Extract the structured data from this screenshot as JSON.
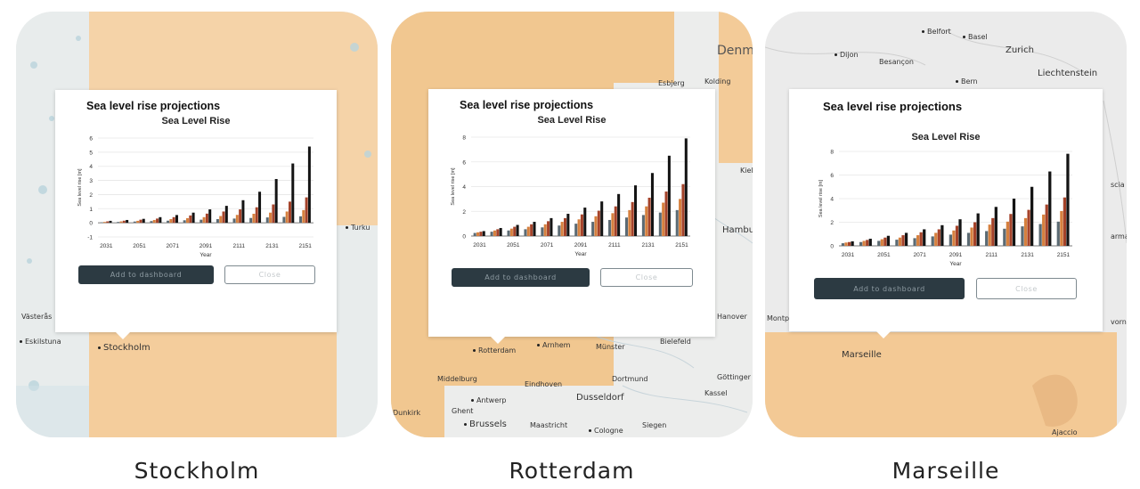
{
  "colors": {
    "bar_dark": "#2a3338",
    "bar_mid": "#5b6a73",
    "bar_orange": "#d6803e",
    "bar_red": "#a5432a",
    "bar_black": "#141414",
    "map_orange": "#f5d0a4"
  },
  "cards": [
    {
      "city": "Stockholm",
      "map_labels": [
        "Turku",
        "Västerås",
        "Eskilstuna",
        "Stockholm"
      ],
      "popup": {
        "title": "Sea level rise projections",
        "add_label": "Add to dashboard",
        "close_label": "Close",
        "chart_data": {
          "type": "bar",
          "title": "Sea Level Rise",
          "xlabel": "Year",
          "ylabel": "Sea level rise [m]",
          "ylim": [
            -1,
            6
          ],
          "yticks": [
            "6",
            "5",
            "4",
            "3",
            "2",
            "1",
            "0",
            "-1"
          ],
          "xticks": [
            "2031",
            "2051",
            "2071",
            "2091",
            "2111",
            "2131",
            "2151"
          ],
          "categories": [
            "2031",
            "2041",
            "2051",
            "2061",
            "2071",
            "2081",
            "2091",
            "2101",
            "2111",
            "2121",
            "2131",
            "2141",
            "2151"
          ],
          "series": [
            {
              "values": [
                0.03,
                0.06,
                0.09,
                0.12,
                0.15,
                0.18,
                0.22,
                0.26,
                0.3,
                0.34,
                0.38,
                0.42,
                0.46
              ]
            },
            {
              "values": [
                0.06,
                0.1,
                0.14,
                0.2,
                0.26,
                0.33,
                0.4,
                0.48,
                0.56,
                0.64,
                0.72,
                0.8,
                0.9
              ]
            },
            {
              "values": [
                0.1,
                0.15,
                0.22,
                0.3,
                0.4,
                0.52,
                0.65,
                0.8,
                0.95,
                1.1,
                1.3,
                1.5,
                1.8
              ]
            },
            {
              "values": [
                0.14,
                0.2,
                0.28,
                0.4,
                0.55,
                0.72,
                0.95,
                1.2,
                1.6,
                2.2,
                3.1,
                4.2,
                5.4
              ]
            }
          ]
        }
      }
    },
    {
      "city": "Rotterdam",
      "map_labels": [
        "Denma",
        "Esbjerg",
        "Kolding",
        "Kiel",
        "Hamburg",
        "Hanover",
        "Arnhem",
        "Münster",
        "Bielefeld",
        "Rotterdam",
        "Middelburg",
        "Eindhoven",
        "Dortmund",
        "Göttinger",
        "Antwerp",
        "Dusseldorf",
        "Kassel",
        "Ghent",
        "Dunkirk",
        "Brussels",
        "Maastricht",
        "Cologne",
        "Siegen"
      ],
      "popup": {
        "title": "Sea level rise projections",
        "add_label": "Add to dashboard",
        "close_label": "Close",
        "chart_data": {
          "type": "bar",
          "title": "Sea Level Rise",
          "xlabel": "Year",
          "ylabel": "Sea level rise [m]",
          "ylim": [
            0,
            8
          ],
          "yticks": [
            "8",
            "6",
            "4",
            "2",
            "0"
          ],
          "xticks": [
            "2031",
            "2051",
            "2071",
            "2091",
            "2111",
            "2131",
            "2151"
          ],
          "categories": [
            "2031",
            "2041",
            "2051",
            "2061",
            "2071",
            "2081",
            "2091",
            "2101",
            "2111",
            "2121",
            "2131",
            "2141",
            "2151"
          ],
          "series": [
            {
              "values": [
                0.25,
                0.35,
                0.45,
                0.55,
                0.7,
                0.85,
                1.0,
                1.15,
                1.3,
                1.5,
                1.7,
                1.9,
                2.1
              ]
            },
            {
              "values": [
                0.3,
                0.45,
                0.6,
                0.75,
                0.95,
                1.15,
                1.35,
                1.6,
                1.85,
                2.1,
                2.4,
                2.7,
                3.0
              ]
            },
            {
              "values": [
                0.35,
                0.55,
                0.75,
                0.95,
                1.2,
                1.45,
                1.75,
                2.05,
                2.4,
                2.75,
                3.1,
                3.6,
                4.2
              ]
            },
            {
              "values": [
                0.4,
                0.65,
                0.9,
                1.15,
                1.45,
                1.8,
                2.3,
                2.8,
                3.4,
                4.1,
                5.1,
                6.5,
                7.9
              ]
            }
          ]
        }
      }
    },
    {
      "city": "Marseille",
      "map_labels": [
        "Belfort",
        "Basel",
        "Zurich",
        "Dijon",
        "Besançon",
        "Liechtenstein",
        "Bern",
        "scia",
        "arma",
        "Montp",
        "vorno",
        "Marseille",
        "Ajaccio"
      ],
      "popup": {
        "title": "Sea level rise projections",
        "add_label": "Add to dashboard",
        "close_label": "Close",
        "chart_data": {
          "type": "bar",
          "title": "Sea Level Rise",
          "xlabel": "Year",
          "ylabel": "Sea level rise [m]",
          "ylim": [
            0,
            8
          ],
          "yticks": [
            "8",
            "6",
            "4",
            "2",
            "0"
          ],
          "xticks": [
            "2031",
            "2051",
            "2071",
            "2091",
            "2111",
            "2131",
            "2151"
          ],
          "categories": [
            "2031",
            "2041",
            "2051",
            "2061",
            "2071",
            "2081",
            "2091",
            "2101",
            "2111",
            "2121",
            "2131",
            "2141",
            "2151"
          ],
          "series": [
            {
              "values": [
                0.22,
                0.32,
                0.42,
                0.52,
                0.65,
                0.8,
                0.95,
                1.1,
                1.25,
                1.45,
                1.65,
                1.85,
                2.05
              ]
            },
            {
              "values": [
                0.28,
                0.42,
                0.56,
                0.7,
                0.9,
                1.1,
                1.3,
                1.55,
                1.8,
                2.05,
                2.35,
                2.65,
                2.95
              ]
            },
            {
              "values": [
                0.32,
                0.5,
                0.7,
                0.9,
                1.15,
                1.4,
                1.7,
                2.0,
                2.35,
                2.7,
                3.05,
                3.5,
                4.1
              ]
            },
            {
              "values": [
                0.38,
                0.6,
                0.85,
                1.1,
                1.4,
                1.75,
                2.25,
                2.75,
                3.3,
                4.0,
                5.0,
                6.3,
                7.8
              ]
            }
          ]
        }
      }
    }
  ]
}
